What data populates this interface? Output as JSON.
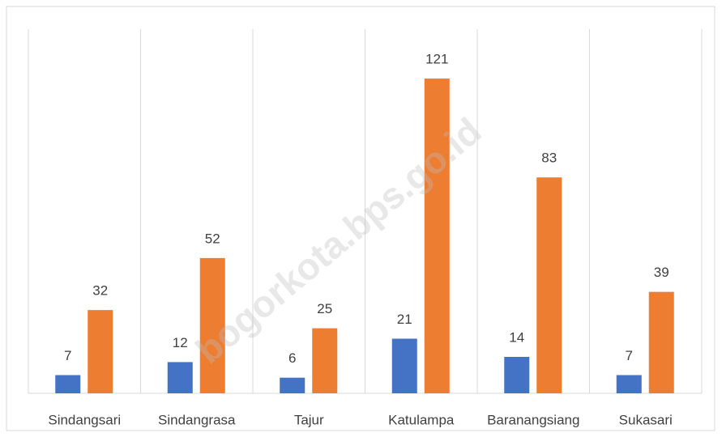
{
  "chart_data": {
    "type": "bar",
    "categories": [
      "Sindangsari",
      "Sindangrasa",
      "Tajur",
      "Katulampa",
      "Baranangsiang",
      "Sukasari"
    ],
    "series": [
      {
        "color": "#4472c4",
        "values": [
          7,
          12,
          6,
          21,
          14,
          7
        ]
      },
      {
        "color": "#ed7d31",
        "values": [
          32,
          52,
          25,
          121,
          83,
          39
        ]
      }
    ],
    "ylim": [
      0,
      140
    ],
    "watermark": "bogorkota.bps.go.id"
  }
}
